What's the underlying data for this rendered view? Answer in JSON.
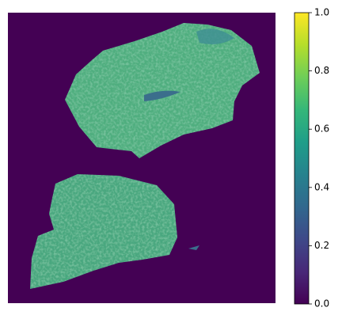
{
  "chart_data": {
    "type": "heatmap",
    "colormap": "viridis",
    "clim": [
      0,
      1
    ],
    "cticks": [
      {
        "value": 0,
        "label": "0.0"
      },
      0.2,
      0.4,
      0.6,
      0.8,
      {
        "value": 1,
        "label": "1.0"
      }
    ]
  }
}
